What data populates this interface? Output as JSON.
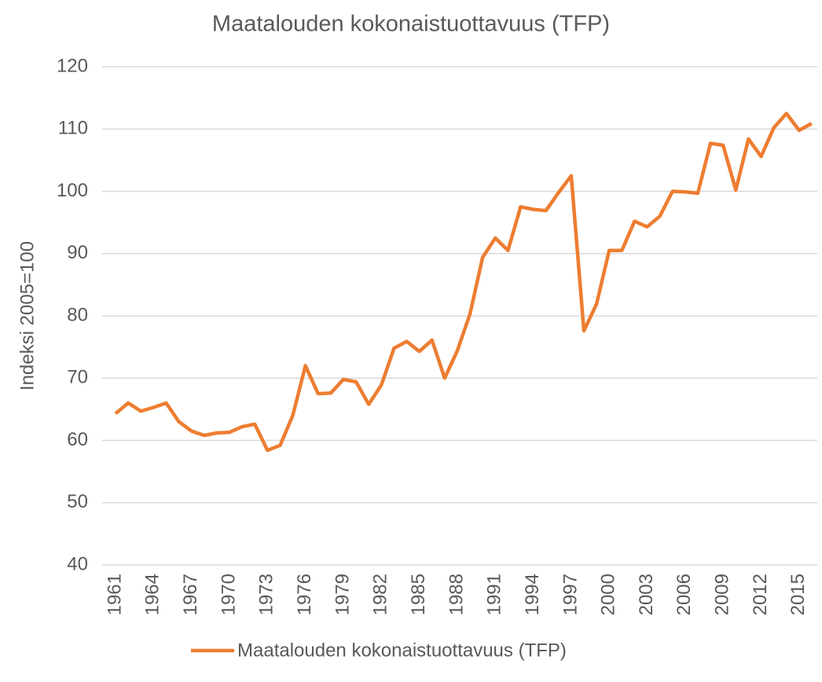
{
  "chart_data": {
    "type": "line",
    "title": "Maatalouden kokonaistuottavuus (TFP)",
    "y_label": "Indeksi 2005=100",
    "x": [
      1961,
      1962,
      1963,
      1964,
      1965,
      1966,
      1967,
      1968,
      1969,
      1970,
      1971,
      1972,
      1973,
      1974,
      1975,
      1976,
      1977,
      1978,
      1979,
      1980,
      1981,
      1982,
      1983,
      1984,
      1985,
      1986,
      1987,
      1988,
      1989,
      1990,
      1991,
      1992,
      1993,
      1994,
      1995,
      1996,
      1997,
      1998,
      1999,
      2000,
      2001,
      2002,
      2003,
      2004,
      2005,
      2006,
      2007,
      2008,
      2009,
      2010,
      2011,
      2012,
      2013,
      2014,
      2015,
      2016
    ],
    "series": [
      {
        "name": "Maatalouden kokonaistuottavuus (TFP)",
        "color": "#ed7d31",
        "values": [
          64.3,
          66.0,
          64.7,
          65.3,
          66.0,
          63.0,
          61.5,
          60.8,
          61.2,
          61.3,
          62.2,
          62.6,
          58.4,
          59.2,
          64.0,
          72.0,
          67.5,
          67.6,
          69.8,
          69.4,
          65.8,
          68.9,
          74.8,
          75.9,
          74.3,
          76.1,
          70.0,
          74.4,
          80.3,
          89.4,
          92.5,
          90.5,
          97.5,
          97.1,
          96.9,
          99.8,
          102.5,
          77.6,
          81.9,
          90.5,
          90.5,
          95.2,
          94.3,
          96.0,
          100.0,
          99.9,
          99.7,
          107.7,
          107.4,
          100.2,
          108.4,
          105.6,
          110.2,
          112.5,
          109.8,
          110.9
        ]
      }
    ],
    "xlim": [
      1960.5,
      2016.5
    ],
    "xticks": [
      1961,
      1964,
      1967,
      1970,
      1973,
      1976,
      1979,
      1982,
      1985,
      1988,
      1991,
      1994,
      1997,
      2000,
      2003,
      2006,
      2009,
      2012,
      2015
    ],
    "ylim": [
      40,
      120
    ],
    "yticks": [
      40,
      50,
      60,
      70,
      80,
      90,
      100,
      110,
      120
    ],
    "grid": true,
    "legend": "bottom"
  }
}
